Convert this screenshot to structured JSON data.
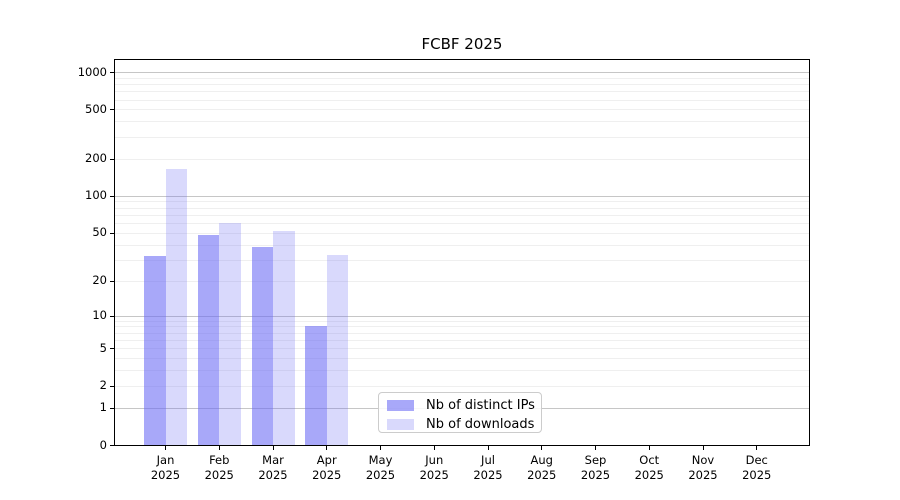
{
  "chart_data": {
    "type": "bar",
    "title": "FCBF 2025",
    "categories": [
      "Jan",
      "Feb",
      "Mar",
      "Apr",
      "May",
      "Jun",
      "Jul",
      "Aug",
      "Sep",
      "Oct",
      "Nov",
      "Dec"
    ],
    "year": "2025",
    "series": [
      {
        "name": "Nb of distinct IPs",
        "color": "rgba(105,105,245,0.58)",
        "values": [
          32,
          48,
          38,
          8,
          0,
          0,
          0,
          0,
          0,
          0,
          0,
          0
        ]
      },
      {
        "name": "Nb of downloads",
        "color": "rgba(105,105,245,0.25)",
        "values": [
          165,
          60,
          52,
          33,
          0,
          0,
          0,
          0,
          0,
          0,
          0,
          0
        ]
      }
    ],
    "y_axis": {
      "scale": "log1p",
      "ylim": [
        0,
        1250
      ],
      "tick_values": [
        0,
        1,
        2,
        5,
        10,
        20,
        50,
        100,
        200,
        500,
        1000
      ],
      "major_gridlines": [
        1,
        10,
        100,
        1000
      ],
      "minor_gridlines": [
        2,
        3,
        4,
        5,
        6,
        7,
        8,
        9,
        20,
        30,
        40,
        50,
        60,
        70,
        80,
        90,
        200,
        300,
        400,
        500,
        600,
        700,
        800,
        900
      ]
    },
    "legend": {
      "position": "lower center"
    },
    "grid": true,
    "colors": {
      "axis": "#000000",
      "major_grid": "#c6c6c6",
      "minor_grid": "#efefef"
    }
  }
}
